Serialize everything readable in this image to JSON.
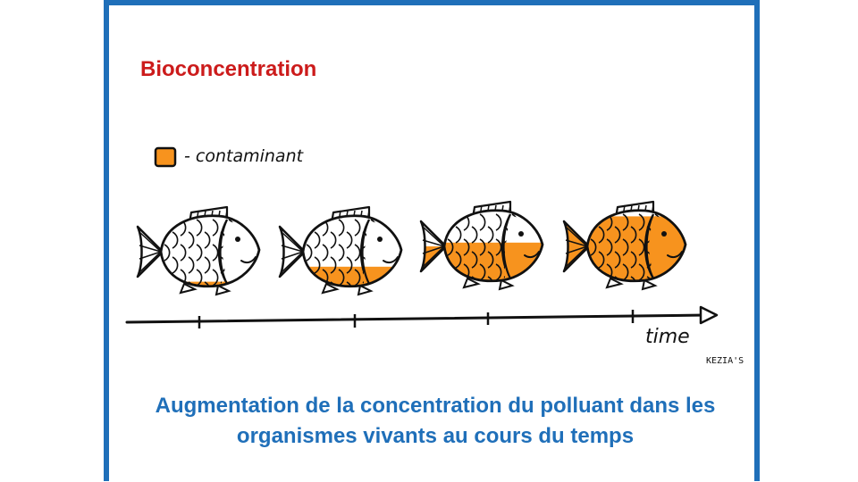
{
  "slide": {
    "title": "Bioconcentration",
    "caption": "Augmentation de la concentration du polluant dans les organismes vivants au cours du temps",
    "accent_color": "#1f6fb9",
    "title_color": "#cc1b1b"
  },
  "illustration": {
    "legend_label": "- contaminant",
    "legend_color": "#f7931e",
    "axis_label": "time",
    "signature": "KEZIA'S",
    "fish_fill_levels": [
      0.1,
      0.3,
      0.55,
      0.9
    ]
  }
}
